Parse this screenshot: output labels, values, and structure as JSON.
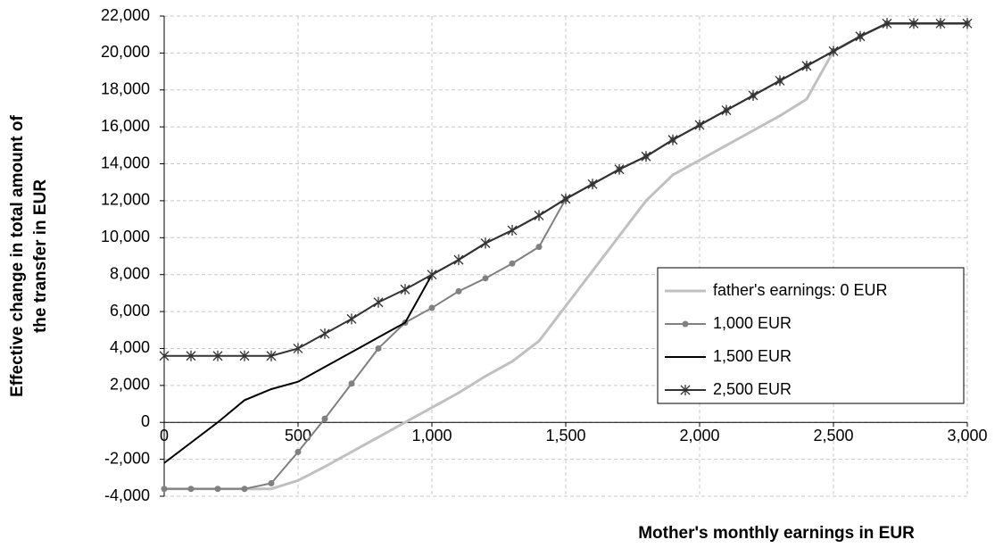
{
  "chart_data": {
    "type": "line",
    "xlabel": "Mother's monthly earnings in EUR",
    "ylabel": [
      "Effective change in total amount of",
      "the transfer in EUR"
    ],
    "x": [
      0,
      100,
      200,
      300,
      400,
      500,
      600,
      700,
      800,
      900,
      1000,
      1100,
      1200,
      1300,
      1400,
      1500,
      1600,
      1700,
      1800,
      1900,
      2000,
      2100,
      2200,
      2300,
      2400,
      2500,
      2600,
      2700,
      2800,
      2900,
      3000
    ],
    "series": [
      {
        "name": "father's earnings: 0 EUR",
        "color": "#c0c0c0",
        "marker": "none",
        "values": [
          -3600,
          -3600,
          -3600,
          -3600,
          -3600,
          -3150,
          -2400,
          -1600,
          -800,
          0,
          800,
          1600,
          2500,
          3300,
          4400,
          6300,
          8200,
          10100,
          12000,
          13400,
          14200,
          15000,
          15800,
          16600,
          17500,
          20100,
          20900,
          21600,
          21600,
          21600,
          21600
        ]
      },
      {
        "name": "1,000 EUR",
        "color": "#808080",
        "marker": "circle",
        "values": [
          -3600,
          -3600,
          -3600,
          -3600,
          -3300,
          -1600,
          200,
          2100,
          4000,
          5400,
          6200,
          7100,
          7800,
          8600,
          9500,
          12100,
          12900,
          13700,
          14400,
          15300,
          16100,
          16900,
          17700,
          18500,
          19300,
          20100,
          20900,
          21600,
          21600,
          21600,
          21600
        ]
      },
      {
        "name": "1,500 EUR",
        "color": "#000000",
        "marker": "none",
        "values": [
          -2200,
          -1100,
          0,
          1200,
          1800,
          2200,
          3000,
          3800,
          4600,
          5400,
          8000,
          8800,
          9700,
          10400,
          11200,
          12100,
          12900,
          13700,
          14400,
          15300,
          16100,
          16900,
          17700,
          18500,
          19300,
          20100,
          20900,
          21600,
          21600,
          21600,
          21600
        ]
      },
      {
        "name": "2,500 EUR",
        "color": "#333333",
        "marker": "asterisk",
        "values": [
          3600,
          3600,
          3600,
          3600,
          3600,
          4000,
          4800,
          5600,
          6500,
          7200,
          8000,
          8800,
          9700,
          10400,
          11200,
          12100,
          12900,
          13700,
          14400,
          15300,
          16100,
          16900,
          17700,
          18500,
          19300,
          20100,
          20900,
          21600,
          21600,
          21600,
          21600
        ]
      }
    ],
    "xlim": [
      0,
      3000
    ],
    "xticks": [
      0,
      500,
      {
        "value": 1000,
        "label": "1,000"
      },
      {
        "value": 1500,
        "label": "1,500"
      },
      {
        "value": 2000,
        "label": "2,000"
      },
      {
        "value": 2500,
        "label": "2,500"
      },
      {
        "value": 3000,
        "label": "3,000"
      }
    ],
    "ylim": [
      -4000,
      22000
    ],
    "yticks": [
      {
        "value": -4000,
        "label": "-4,000"
      },
      {
        "value": -2000,
        "label": "-2,000"
      },
      0,
      {
        "value": 2000,
        "label": "2,000"
      },
      {
        "value": 4000,
        "label": "4,000"
      },
      {
        "value": 6000,
        "label": "6,000"
      },
      {
        "value": 8000,
        "label": "8,000"
      },
      {
        "value": 10000,
        "label": "10,000"
      },
      {
        "value": 12000,
        "label": "12,000"
      },
      {
        "value": 14000,
        "label": "14,000"
      },
      {
        "value": 16000,
        "label": "16,000"
      },
      {
        "value": 18000,
        "label": "18,000"
      },
      {
        "value": 20000,
        "label": "20,000"
      },
      {
        "value": 22000,
        "label": "22,000"
      }
    ],
    "grid": true,
    "legend": "right"
  }
}
